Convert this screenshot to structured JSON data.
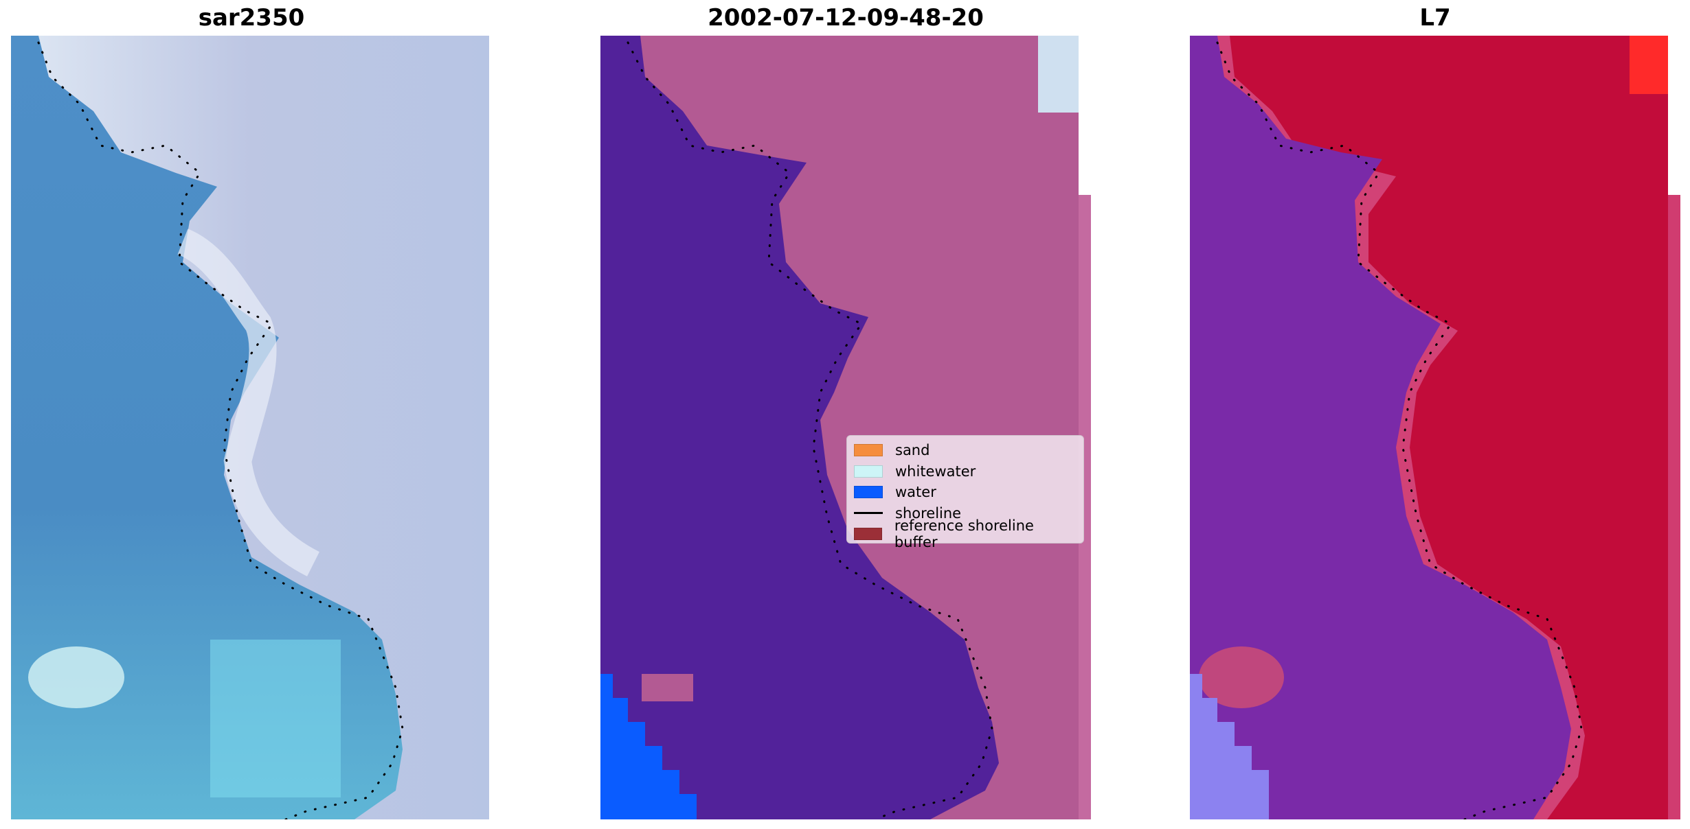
{
  "panels": [
    {
      "title": "sar2350"
    },
    {
      "title": "2002-07-12-09-48-20"
    },
    {
      "title": "L7"
    }
  ],
  "legend": {
    "items": [
      {
        "label": "sand",
        "color": "#f58d3e",
        "kind": "patch"
      },
      {
        "label": "whitewater",
        "color": "#cdf5f7",
        "kind": "patch"
      },
      {
        "label": "water",
        "color": "#0a5cff",
        "kind": "patch"
      },
      {
        "label": "shoreline",
        "color": "#000000",
        "kind": "line"
      },
      {
        "label": "reference shoreline buffer",
        "color": "#9b2f37",
        "kind": "patch"
      }
    ]
  },
  "colors": {
    "sar_water": "#4a8fc6",
    "sar_land": "#bcc6e2",
    "class_water": "#52229a",
    "class_land": "#b35a93",
    "class_ocean": "#0a5cff",
    "l7_water": "#7a2aa8",
    "l7_land": "#c20c3a"
  }
}
